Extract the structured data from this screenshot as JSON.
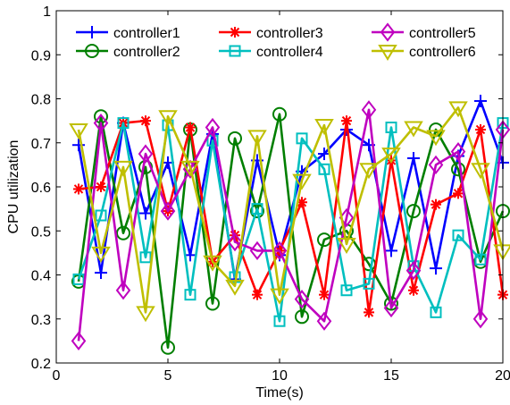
{
  "chart_data": {
    "type": "line",
    "title": "",
    "xlabel": "Time(s)",
    "ylabel": "CPU utilization",
    "xlim": [
      0,
      20
    ],
    "ylim": [
      0.2,
      1
    ],
    "xticks": [
      0,
      5,
      10,
      15,
      20
    ],
    "yticks": [
      0.2,
      0.3,
      0.4,
      0.5,
      0.6,
      0.7,
      0.8,
      0.9,
      1
    ],
    "xtick_labels": [
      "0",
      "5",
      "10",
      "15",
      "20"
    ],
    "ytick_labels": [
      "0.2",
      "0.3",
      "0.4",
      "0.5",
      "0.6",
      "0.7",
      "0.8",
      "0.9",
      "1"
    ],
    "grid": false,
    "legend_position": "top",
    "x": [
      1,
      2,
      3,
      4,
      5,
      6,
      7,
      8,
      9,
      10,
      11,
      12,
      13,
      14,
      15,
      16,
      17,
      18,
      19,
      20
    ],
    "series": [
      {
        "name": "controller1",
        "color": "#0000ff",
        "marker": "plus",
        "values": [
          0.695,
          0.405,
          0.745,
          0.54,
          0.655,
          0.445,
          0.72,
          0.39,
          0.66,
          0.445,
          0.635,
          0.675,
          0.73,
          0.695,
          0.455,
          0.665,
          0.415,
          0.67,
          0.795,
          0.655
        ]
      },
      {
        "name": "controller2",
        "color": "#007f00",
        "marker": "circle",
        "values": [
          0.385,
          0.76,
          0.495,
          0.645,
          0.235,
          0.73,
          0.335,
          0.71,
          0.545,
          0.765,
          0.305,
          0.48,
          0.5,
          0.425,
          0.335,
          0.545,
          0.73,
          0.64,
          0.43,
          0.545
        ]
      },
      {
        "name": "controller3",
        "color": "#ff0000",
        "marker": "asterisk",
        "values": [
          0.595,
          0.6,
          0.745,
          0.75,
          0.545,
          0.735,
          0.43,
          0.49,
          0.355,
          0.455,
          0.565,
          0.355,
          0.75,
          0.315,
          0.66,
          0.365,
          0.56,
          0.585,
          0.73,
          0.355
        ]
      },
      {
        "name": "controller4",
        "color": "#00bfbf",
        "marker": "square",
        "values": [
          0.39,
          0.535,
          0.745,
          0.44,
          0.74,
          0.355,
          0.705,
          0.395,
          0.55,
          0.295,
          0.71,
          0.64,
          0.365,
          0.38,
          0.735,
          0.42,
          0.315,
          0.49,
          0.435,
          0.745
        ]
      },
      {
        "name": "controller5",
        "color": "#bf00bf",
        "marker": "diamond",
        "values": [
          0.25,
          0.745,
          0.365,
          0.675,
          0.545,
          0.64,
          0.735,
          0.475,
          0.455,
          0.455,
          0.345,
          0.295,
          0.53,
          0.775,
          0.325,
          0.41,
          0.65,
          0.68,
          0.3,
          0.73
        ]
      },
      {
        "name": "controller6",
        "color": "#bfbf00",
        "marker": "triangle-down",
        "values": [
          0.73,
          0.45,
          0.645,
          0.315,
          0.76,
          0.645,
          0.43,
          0.375,
          0.715,
          0.355,
          0.615,
          0.74,
          0.47,
          0.64,
          0.675,
          0.735,
          0.715,
          0.78,
          0.64,
          0.455
        ]
      }
    ]
  }
}
